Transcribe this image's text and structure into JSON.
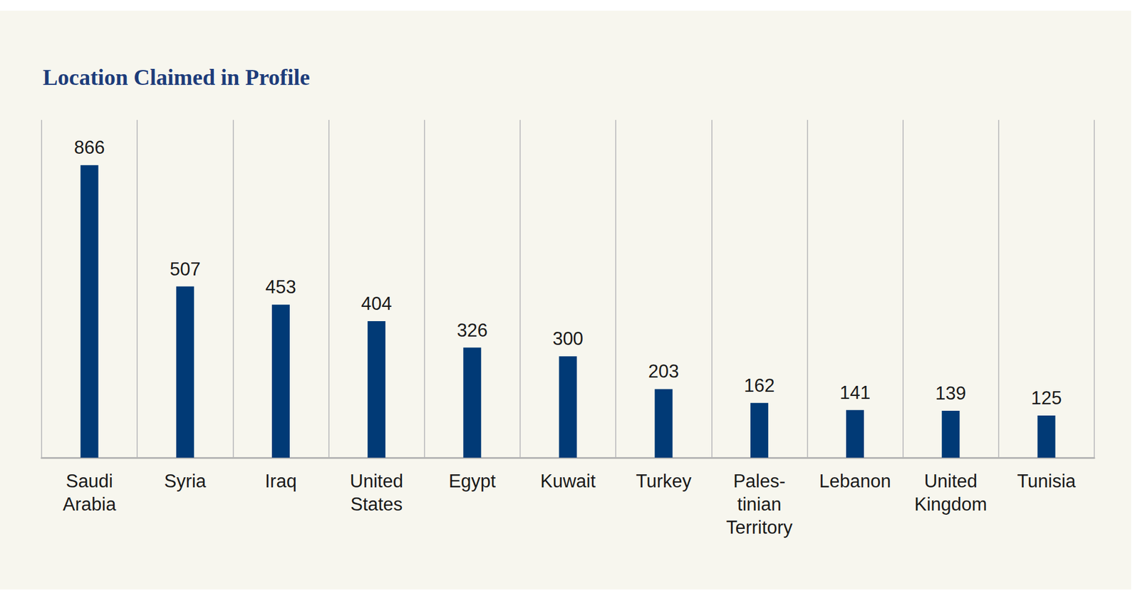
{
  "chart_data": {
    "type": "bar",
    "title": "Location Claimed in Profile",
    "categories": [
      "Saudi\nArabia",
      "Syria",
      "Iraq",
      "United\nStates",
      "Egypt",
      "Kuwait",
      "Turkey",
      "Pales-\ntinian\nTerritory",
      "Lebanon",
      "United\nKingdom",
      "Tunisia"
    ],
    "values": [
      866,
      507,
      453,
      404,
      326,
      300,
      203,
      162,
      141,
      139,
      125
    ],
    "color": "#013a76",
    "ylim": [
      0,
      1000
    ],
    "yticks": [
      0,
      1000
    ],
    "grid": false,
    "data_labels": true,
    "tick_labels": "x"
  }
}
